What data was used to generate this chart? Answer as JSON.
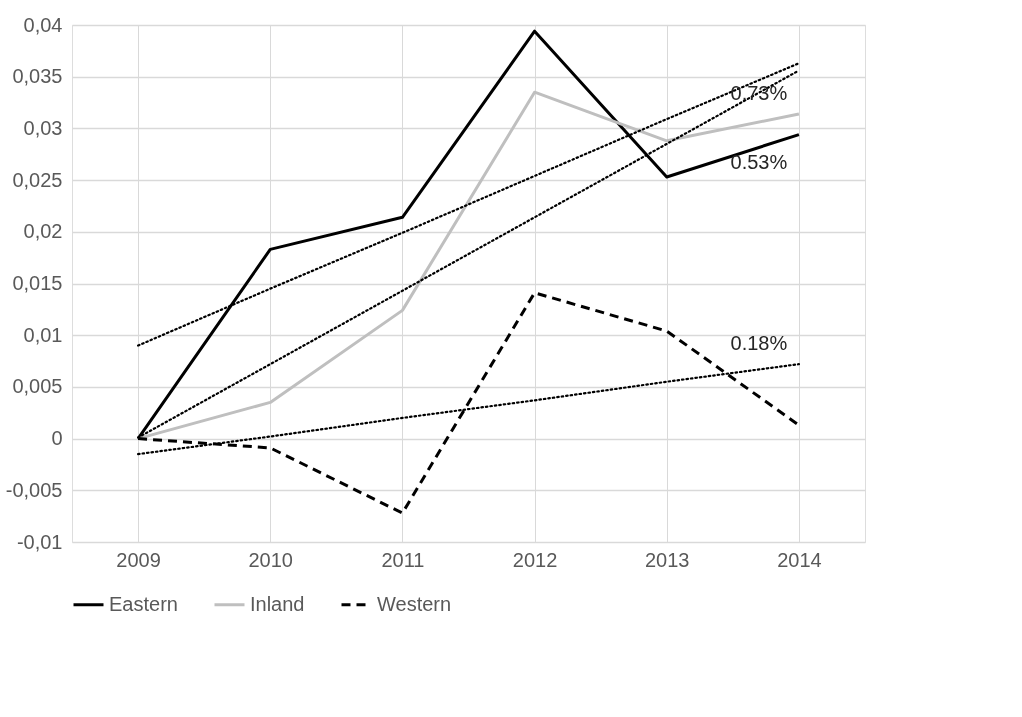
{
  "chart_data": {
    "type": "line",
    "categories": [
      "2009",
      "2010",
      "2011",
      "2012",
      "2013",
      "2014"
    ],
    "series": [
      {
        "name": "Eastern",
        "color": "#000000",
        "line_style": "solid",
        "values": [
          0,
          0.0183,
          0.0214,
          0.0394,
          0.0253,
          0.0294
        ]
      },
      {
        "name": "Inland",
        "color": "#bfbfbf",
        "line_style": "solid",
        "values": [
          0,
          0.0035,
          0.0124,
          0.0335,
          0.0288,
          0.0314
        ]
      },
      {
        "name": "Western",
        "color": "#000000",
        "line_style": "dashed",
        "values": [
          0,
          -0.0009,
          -0.0072,
          0.0141,
          0.0104,
          0.0013
        ]
      },
      {
        "type": "line",
        "color": "#000000",
        "line_style": "dotted",
        "values": [
          0.009,
          0.0145,
          0.0199,
          0.0254,
          0.0309,
          0.0363
        ]
      },
      {
        "type": "line",
        "color": "#000000",
        "line_style": "dotted",
        "values": [
          0.0001,
          0.0072,
          0.0143,
          0.0214,
          0.0285,
          0.0356
        ]
      },
      {
        "type": "line",
        "color": "#000000",
        "line_style": "dotted",
        "values": [
          -0.0015,
          0.0002,
          0.002,
          0.0037,
          0.0055,
          0.0072
        ]
      }
    ],
    "ylim": [
      -0.01,
      0.04
    ],
    "yticks": [
      {
        "value": -0.01,
        "label": "-0,01"
      },
      {
        "value": -0.005,
        "label": "-0,005"
      },
      0,
      {
        "value": 0.005,
        "label": "0,005"
      },
      {
        "value": 0.01,
        "label": "0,01"
      },
      {
        "value": 0.015,
        "label": "0,015"
      },
      {
        "value": 0.02,
        "label": "0,02"
      },
      {
        "value": 0.025,
        "label": "0,025"
      },
      {
        "value": 0.03,
        "label": "0,03"
      },
      {
        "value": 0.035,
        "label": "0,035"
      },
      {
        "value": 0.04,
        "label": "0,04"
      }
    ],
    "annotations": [
      {
        "text": "0.73%",
        "x": "2014",
        "y": 0.0314
      },
      {
        "text": "0.53%",
        "x": "2014",
        "y": 0.0294
      },
      {
        "text": "0.18%",
        "x": "2014",
        "y": 0.0072
      }
    ],
    "grid": true,
    "legend": "bottom",
    "marker": "none"
  }
}
